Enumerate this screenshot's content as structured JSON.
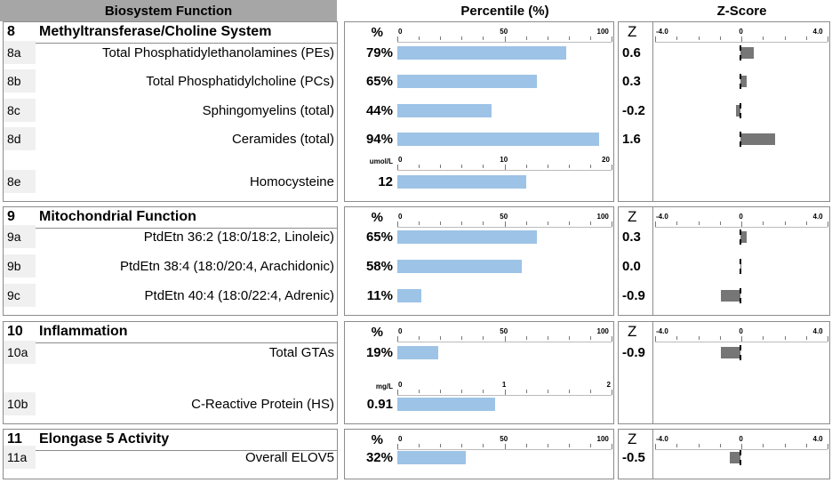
{
  "header": {
    "biosystem": "Biosystem Function",
    "percentile": "Percentile (%)",
    "zscore": "Z-Score"
  },
  "colors": {
    "percentile_bar": "#9dc3e6",
    "z_bar": "#767676",
    "header_bg": "#a6a6a6"
  },
  "sections": [
    {
      "num": "8",
      "title": "Methyltransferase/Choline System",
      "pct_head": "%",
      "z_head": "Z",
      "pct_ticks": [
        "0",
        "50",
        "100"
      ],
      "z_ticks": [
        "-4.0",
        "0",
        "4.0"
      ],
      "rows": [
        {
          "id": "8a",
          "label": "Total Phosphatidylethanolamines (PEs)",
          "value": "79%",
          "z": "0.6"
        },
        {
          "id": "8b",
          "label": "Total Phosphatidylcholine (PCs)",
          "value": "65%",
          "z": "0.3"
        },
        {
          "id": "8c",
          "label": "Sphingomyelins (total)",
          "value": "44%",
          "z": "-0.2"
        },
        {
          "id": "8d",
          "label": "Ceramides (total)",
          "value": "94%",
          "z": "1.6"
        },
        {
          "id": "8e",
          "label": "Homocysteine",
          "value": "12",
          "z": "",
          "unit": "umol/L",
          "ticks": [
            "0",
            "10",
            "20"
          ]
        }
      ]
    },
    {
      "num": "9",
      "title": "Mitochondrial Function",
      "pct_head": "%",
      "z_head": "Z",
      "pct_ticks": [
        "0",
        "50",
        "100"
      ],
      "z_ticks": [
        "-4.0",
        "0",
        "4.0"
      ],
      "rows": [
        {
          "id": "9a",
          "label": "PtdEtn 36:2 (18:0/18:2, Linoleic)",
          "value": "65%",
          "z": "0.3"
        },
        {
          "id": "9b",
          "label": "PtdEtn 38:4 (18:0/20:4, Arachidonic)",
          "value": "58%",
          "z": "0.0"
        },
        {
          "id": "9c",
          "label": "PtdEtn 40:4 (18:0/22:4, Adrenic)",
          "value": "11%",
          "z": "-0.9"
        }
      ]
    },
    {
      "num": "10",
      "title": "Inflammation",
      "pct_head": "%",
      "z_head": "Z",
      "pct_ticks": [
        "0",
        "50",
        "100"
      ],
      "z_ticks": [
        "-4.0",
        "0",
        "4.0"
      ],
      "rows": [
        {
          "id": "10a",
          "label": "Total GTAs",
          "value": "19%",
          "z": "-0.9"
        },
        {
          "id": "10b",
          "label": "C-Reactive Protein (HS)",
          "value": "0.91",
          "z": "",
          "unit": "mg/L",
          "ticks": [
            "0",
            "1",
            "2"
          ]
        }
      ]
    },
    {
      "num": "11",
      "title": "Elongase 5 Activity",
      "pct_head": "%",
      "z_head": "Z",
      "pct_ticks": [
        "0",
        "50",
        "100"
      ],
      "z_ticks": [
        "-4.0",
        "0",
        "4.0"
      ],
      "rows": [
        {
          "id": "11a",
          "label": "Overall ELOV5",
          "value": "32%",
          "z": "-0.5"
        }
      ]
    }
  ],
  "chart_data": {
    "type": "bar",
    "percentile": {
      "categories": [
        "8a",
        "8b",
        "8c",
        "8d",
        "8e",
        "9a",
        "9b",
        "9c",
        "10a",
        "10b",
        "11a"
      ],
      "values": [
        79,
        65,
        44,
        94,
        12,
        65,
        58,
        11,
        19,
        0.91,
        32
      ],
      "ranges": [
        [
          0,
          100
        ],
        [
          0,
          100
        ],
        [
          0,
          100
        ],
        [
          0,
          100
        ],
        [
          0,
          20
        ],
        [
          0,
          100
        ],
        [
          0,
          100
        ],
        [
          0,
          100
        ],
        [
          0,
          100
        ],
        [
          0,
          2
        ],
        [
          0,
          100
        ]
      ]
    },
    "zscore": {
      "categories": [
        "8a",
        "8b",
        "8c",
        "8d",
        "9a",
        "9b",
        "9c",
        "10a",
        "11a"
      ],
      "values": [
        0.6,
        0.3,
        -0.2,
        1.6,
        0.3,
        0.0,
        -0.9,
        -0.9,
        -0.5
      ],
      "xlim": [
        -4.0,
        4.0
      ]
    }
  }
}
